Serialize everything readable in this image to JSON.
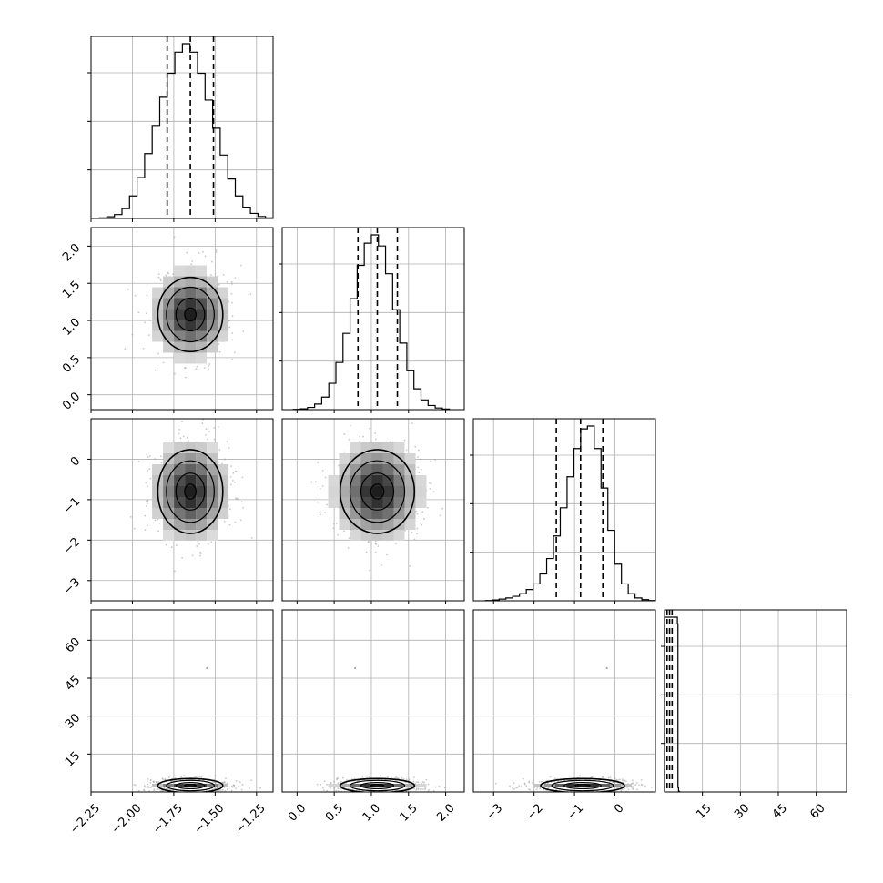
{
  "chart_data": {
    "type": "corner",
    "grid": true,
    "colors": {
      "frame": "#000000",
      "grid": "#b0b0b0",
      "points": "#9a9a9a",
      "contour": "#000000"
    },
    "parameters": [
      {
        "range": [
          -2.25,
          -1.15
        ],
        "ticks": [
          -2.25,
          -2.0,
          -1.75,
          -1.5,
          -1.25
        ],
        "tick_labels": [
          "−2.25",
          "−2.00",
          "−1.75",
          "−1.50",
          "−1.25"
        ],
        "quantiles": [
          -1.79,
          -1.65,
          -1.51
        ]
      },
      {
        "range": [
          -0.2,
          2.25
        ],
        "ticks": [
          0.0,
          0.5,
          1.0,
          1.5,
          2.0
        ],
        "tick_labels": [
          "0.0",
          "0.5",
          "1.0",
          "1.5",
          "2.0"
        ],
        "quantiles": [
          0.82,
          1.08,
          1.35
        ]
      },
      {
        "range": [
          -3.5,
          1.0
        ],
        "ticks": [
          -3,
          -2,
          -1,
          0
        ],
        "tick_labels": [
          "−3",
          "−2",
          "−1",
          "0"
        ],
        "quantiles": [
          -1.45,
          -0.85,
          -0.3
        ]
      },
      {
        "range": [
          0.0,
          72.0
        ],
        "ticks": [
          15,
          30,
          45,
          60
        ],
        "tick_labels": [
          "15",
          "30",
          "45",
          "60"
        ],
        "quantiles": [
          1.0,
          2.0,
          3.0
        ]
      }
    ],
    "histograms": [
      [
        2,
        6,
        14,
        35,
        80,
        145,
        230,
        330,
        430,
        515,
        590,
        620,
        590,
        515,
        420,
        320,
        225,
        140,
        80,
        40,
        18,
        7,
        2
      ],
      [
        1,
        3,
        8,
        20,
        45,
        95,
        170,
        275,
        400,
        520,
        600,
        630,
        590,
        490,
        360,
        240,
        140,
        75,
        35,
        15,
        6,
        2
      ],
      [
        1,
        3,
        6,
        10,
        16,
        25,
        40,
        60,
        95,
        150,
        230,
        330,
        440,
        540,
        610,
        620,
        540,
        400,
        250,
        130,
        60,
        25,
        10,
        4,
        1
      ],
      [
        800,
        800,
        800,
        800,
        800,
        800,
        800,
        800,
        800,
        800,
        800,
        800,
        800,
        800,
        800,
        800,
        800,
        800,
        800,
        800,
        800,
        800,
        770,
        20,
        4,
        1
      ]
    ]
  }
}
